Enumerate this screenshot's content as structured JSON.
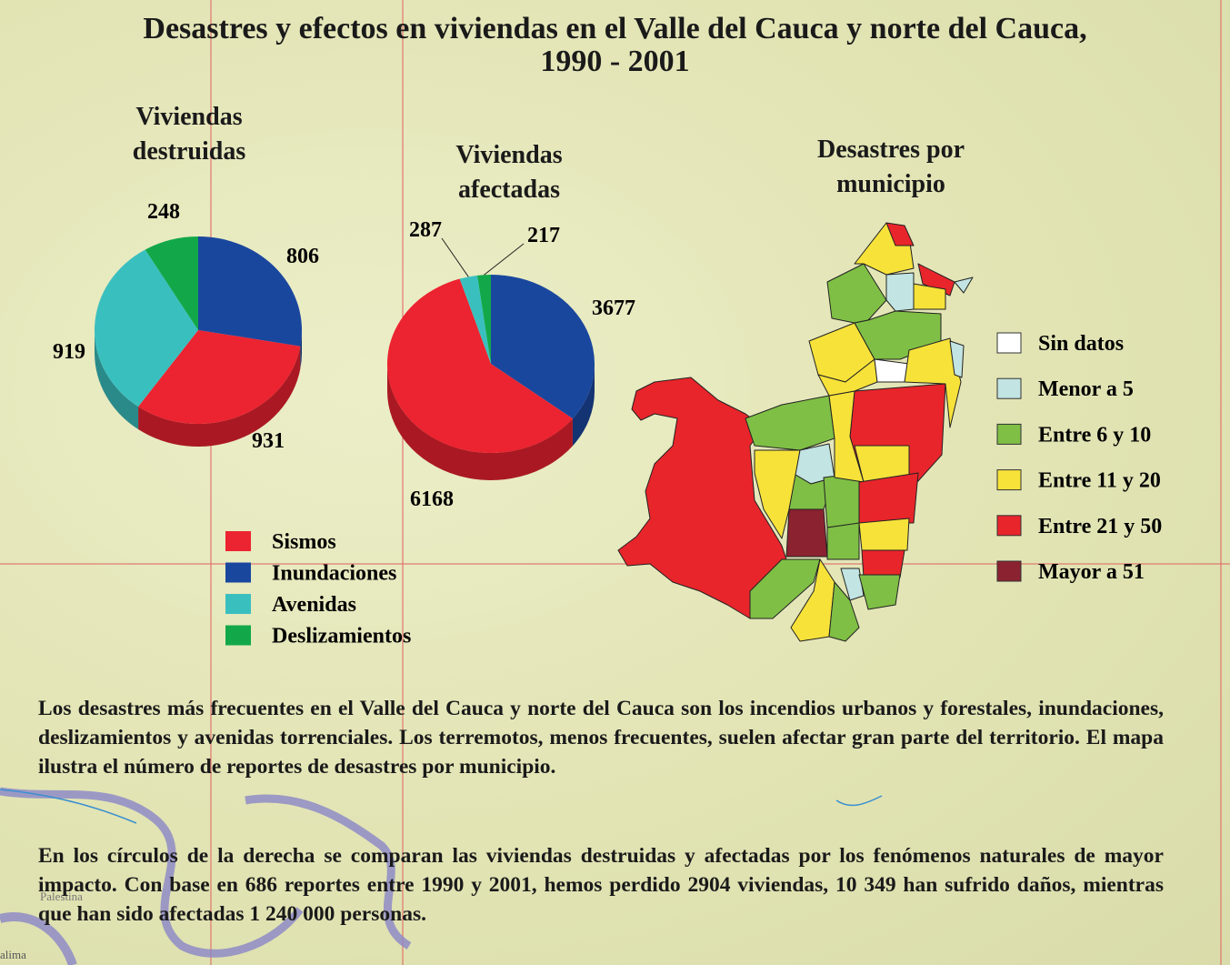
{
  "title": [
    "Desastres y efectos en viviendas en el Valle del Cauca y norte del Cauca,",
    "1990 - 2001"
  ],
  "chart_data": [
    {
      "type": "pie",
      "title": "Viviendas destruidas",
      "categories": [
        "Sismos",
        "Inundaciones",
        "Avenidas",
        "Deslizamientos"
      ],
      "values": [
        931,
        806,
        919,
        248
      ],
      "colors": [
        "#ec2330",
        "#1a479e",
        "#3abfbf",
        "#12a84a"
      ]
    },
    {
      "type": "pie",
      "title": "Viviendas afectadas",
      "categories": [
        "Sismos",
        "Inundaciones",
        "Avenidas",
        "Deslizamientos"
      ],
      "values": [
        6168,
        3677,
        287,
        217
      ],
      "colors": [
        "#ec2330",
        "#1a479e",
        "#3abfbf",
        "#12a84a"
      ]
    }
  ],
  "map": {
    "title": "Desastres por municipio",
    "legend": [
      {
        "label": "Sin datos",
        "color": "#ffffff"
      },
      {
        "label": "Menor a 5",
        "color": "#c2e4e2"
      },
      {
        "label": "Entre 6 y 10",
        "color": "#7fbf45"
      },
      {
        "label": "Entre 11 y 20",
        "color": "#f7e23a"
      },
      {
        "label": "Entre 21 y 50",
        "color": "#e8252b"
      },
      {
        "label": "Mayor a 51",
        "color": "#8b2230"
      }
    ],
    "place_labels": [
      "Palestina",
      "alima"
    ]
  },
  "paragraphs": [
    "Los desastres más frecuentes en el Valle del Cauca y norte del Cauca son los incendios urbanos y forestales, inundaciones, deslizamientos y avenidas torrenciales. Los terremotos, menos frecuentes, suelen afectar gran parte del territorio. El mapa ilustra el número de reportes de desastres por municipio.",
    "En los círculos de la derecha se comparan las viviendas destruidas y afectadas por los fenómenos naturales de mayor impacto. Con base en 686 reportes entre 1990 y 2001, hemos perdido 2904 viviendas, 10 349 han sufrido daños, mientras que han sido afectadas 1 240 000 personas."
  ]
}
